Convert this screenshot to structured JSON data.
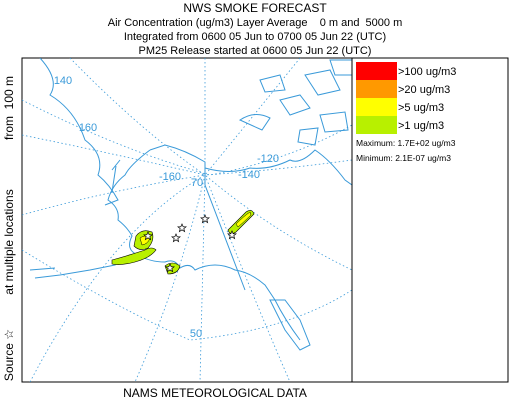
{
  "header": {
    "title": "NWS SMOKE FORECAST",
    "lines": [
      "Air Concentration (ug/m3) Layer Average    0 m and  5000 m",
      "Integrated from 0600 05 Jun to 0700 05 Jun 22 (UTC)",
      "PM25 Release started at 0600 05 Jun 22 (UTC)"
    ]
  },
  "side_label": [
    "Source ☆",
    "at multiple locations",
    "from  100 m"
  ],
  "map": {
    "graticule_labels": [
      "140",
      "160",
      "-160",
      "70",
      "-140",
      "-120",
      "50"
    ]
  },
  "legend": {
    "items": [
      ">100 ug/m3",
      ">20 ug/m3",
      ">5 ug/m3",
      ">1 ug/m3"
    ],
    "maximum": "Maximum: 1.7E+02 ug/m3",
    "minimum": "Minimum: 2.1E-07 ug/m3"
  },
  "footer": "NAMS METEOROLOGICAL DATA"
}
